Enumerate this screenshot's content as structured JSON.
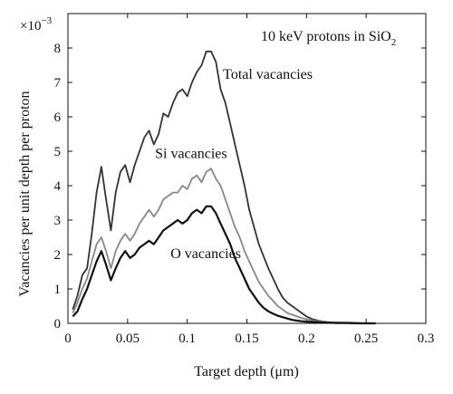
{
  "chart_data": {
    "type": "line",
    "title": "10 keV protons in SiO",
    "title_subscript": "2",
    "xlabel": "Target depth (μm)",
    "ylabel": "Vacancies per unit depth per proton",
    "y_multiplier_label": "×10",
    "y_multiplier_exponent": "−3",
    "xlim": [
      0,
      0.3
    ],
    "ylim": [
      0,
      9
    ],
    "xticks": [
      "0",
      "0.05",
      "0.1",
      "0.15",
      "0.2",
      "0.25",
      "0.3"
    ],
    "xtick_values": [
      0,
      0.05,
      0.1,
      0.15,
      0.2,
      0.25,
      0.3
    ],
    "yticks": [
      "0",
      "1",
      "2",
      "3",
      "4",
      "5",
      "6",
      "7",
      "8"
    ],
    "ytick_values": [
      0,
      1,
      2,
      3,
      4,
      5,
      6,
      7,
      8
    ],
    "grid": false,
    "series": [
      {
        "name": "Total vacancies",
        "color": "#333333",
        "x": [
          0.004,
          0.008,
          0.012,
          0.016,
          0.02,
          0.024,
          0.028,
          0.032,
          0.036,
          0.04,
          0.044,
          0.048,
          0.052,
          0.056,
          0.06,
          0.064,
          0.068,
          0.072,
          0.076,
          0.08,
          0.084,
          0.088,
          0.092,
          0.096,
          0.1,
          0.104,
          0.108,
          0.112,
          0.116,
          0.12,
          0.124,
          0.128,
          0.132,
          0.136,
          0.14,
          0.144,
          0.148,
          0.152,
          0.156,
          0.16,
          0.164,
          0.168,
          0.172,
          0.176,
          0.18,
          0.184,
          0.188,
          0.192,
          0.196,
          0.2,
          0.205,
          0.21,
          0.215,
          0.22,
          0.226,
          0.232,
          0.24
        ],
        "y": [
          0.4,
          0.8,
          1.4,
          1.6,
          2.6,
          3.8,
          4.55,
          3.6,
          2.7,
          3.8,
          4.4,
          4.6,
          4.1,
          4.6,
          5.0,
          5.4,
          5.6,
          5.2,
          5.5,
          6.1,
          6.0,
          6.4,
          6.7,
          6.8,
          6.6,
          7.0,
          7.3,
          7.5,
          7.9,
          7.9,
          7.6,
          6.8,
          6.4,
          5.8,
          5.2,
          4.6,
          4.0,
          3.3,
          2.8,
          2.3,
          1.95,
          1.6,
          1.3,
          1.0,
          0.75,
          0.6,
          0.5,
          0.4,
          0.3,
          0.2,
          0.12,
          0.08,
          0.05,
          0.03,
          0.02,
          0.01,
          0.0
        ]
      },
      {
        "name": "Si vacancies",
        "color": "#888888",
        "x": [
          0.004,
          0.008,
          0.012,
          0.016,
          0.02,
          0.024,
          0.028,
          0.032,
          0.036,
          0.04,
          0.044,
          0.048,
          0.052,
          0.056,
          0.06,
          0.064,
          0.068,
          0.072,
          0.076,
          0.08,
          0.084,
          0.088,
          0.092,
          0.096,
          0.1,
          0.104,
          0.108,
          0.112,
          0.116,
          0.12,
          0.124,
          0.128,
          0.132,
          0.136,
          0.14,
          0.144,
          0.148,
          0.152,
          0.156,
          0.16,
          0.164,
          0.168,
          0.172,
          0.176,
          0.18,
          0.184,
          0.188,
          0.192,
          0.196,
          0.2,
          0.206,
          0.212,
          0.218,
          0.225,
          0.235,
          0.245,
          0.258
        ],
        "y": [
          0.3,
          0.6,
          1.0,
          1.3,
          1.8,
          2.3,
          2.5,
          2.1,
          1.6,
          2.1,
          2.4,
          2.6,
          2.4,
          2.6,
          2.9,
          3.1,
          3.3,
          3.1,
          3.3,
          3.6,
          3.7,
          3.8,
          3.8,
          4.0,
          3.9,
          4.2,
          4.3,
          4.1,
          4.4,
          4.5,
          4.2,
          4.0,
          3.6,
          3.2,
          2.8,
          2.5,
          2.1,
          1.8,
          1.5,
          1.2,
          1.0,
          0.8,
          0.65,
          0.5,
          0.4,
          0.3,
          0.25,
          0.2,
          0.15,
          0.12,
          0.08,
          0.06,
          0.04,
          0.03,
          0.02,
          0.01,
          0.0
        ]
      },
      {
        "name": "O vacancies",
        "color": "#111111",
        "x": [
          0.004,
          0.008,
          0.012,
          0.016,
          0.02,
          0.024,
          0.028,
          0.032,
          0.036,
          0.04,
          0.044,
          0.048,
          0.052,
          0.056,
          0.06,
          0.064,
          0.068,
          0.072,
          0.076,
          0.08,
          0.084,
          0.088,
          0.092,
          0.096,
          0.1,
          0.104,
          0.108,
          0.112,
          0.116,
          0.12,
          0.124,
          0.128,
          0.132,
          0.136,
          0.14,
          0.144,
          0.148,
          0.152,
          0.156,
          0.16,
          0.164,
          0.168,
          0.172,
          0.176,
          0.18,
          0.184,
          0.188,
          0.192,
          0.196,
          0.2,
          0.206,
          0.212,
          0.218,
          0.225,
          0.235,
          0.245,
          0.258
        ],
        "y": [
          0.2,
          0.35,
          0.7,
          1.0,
          1.4,
          1.8,
          2.1,
          1.7,
          1.25,
          1.6,
          1.9,
          2.1,
          1.9,
          2.0,
          2.2,
          2.3,
          2.4,
          2.3,
          2.5,
          2.7,
          2.8,
          2.9,
          3.0,
          2.9,
          3.0,
          3.2,
          3.3,
          3.2,
          3.4,
          3.4,
          3.2,
          2.9,
          2.6,
          2.3,
          1.9,
          1.6,
          1.3,
          1.0,
          0.8,
          0.6,
          0.45,
          0.35,
          0.28,
          0.22,
          0.18,
          0.14,
          0.1,
          0.08,
          0.06,
          0.05,
          0.04,
          0.03,
          0.02,
          0.01,
          0.01,
          0.0,
          0.0
        ]
      }
    ],
    "annotations": [
      {
        "text": "Total vacancies",
        "x": 0.13,
        "y": 7.1
      },
      {
        "text": "Si vacancies",
        "x": 0.073,
        "y": 4.8
      },
      {
        "text": "O vacancies",
        "x": 0.086,
        "y": 1.9
      }
    ]
  }
}
